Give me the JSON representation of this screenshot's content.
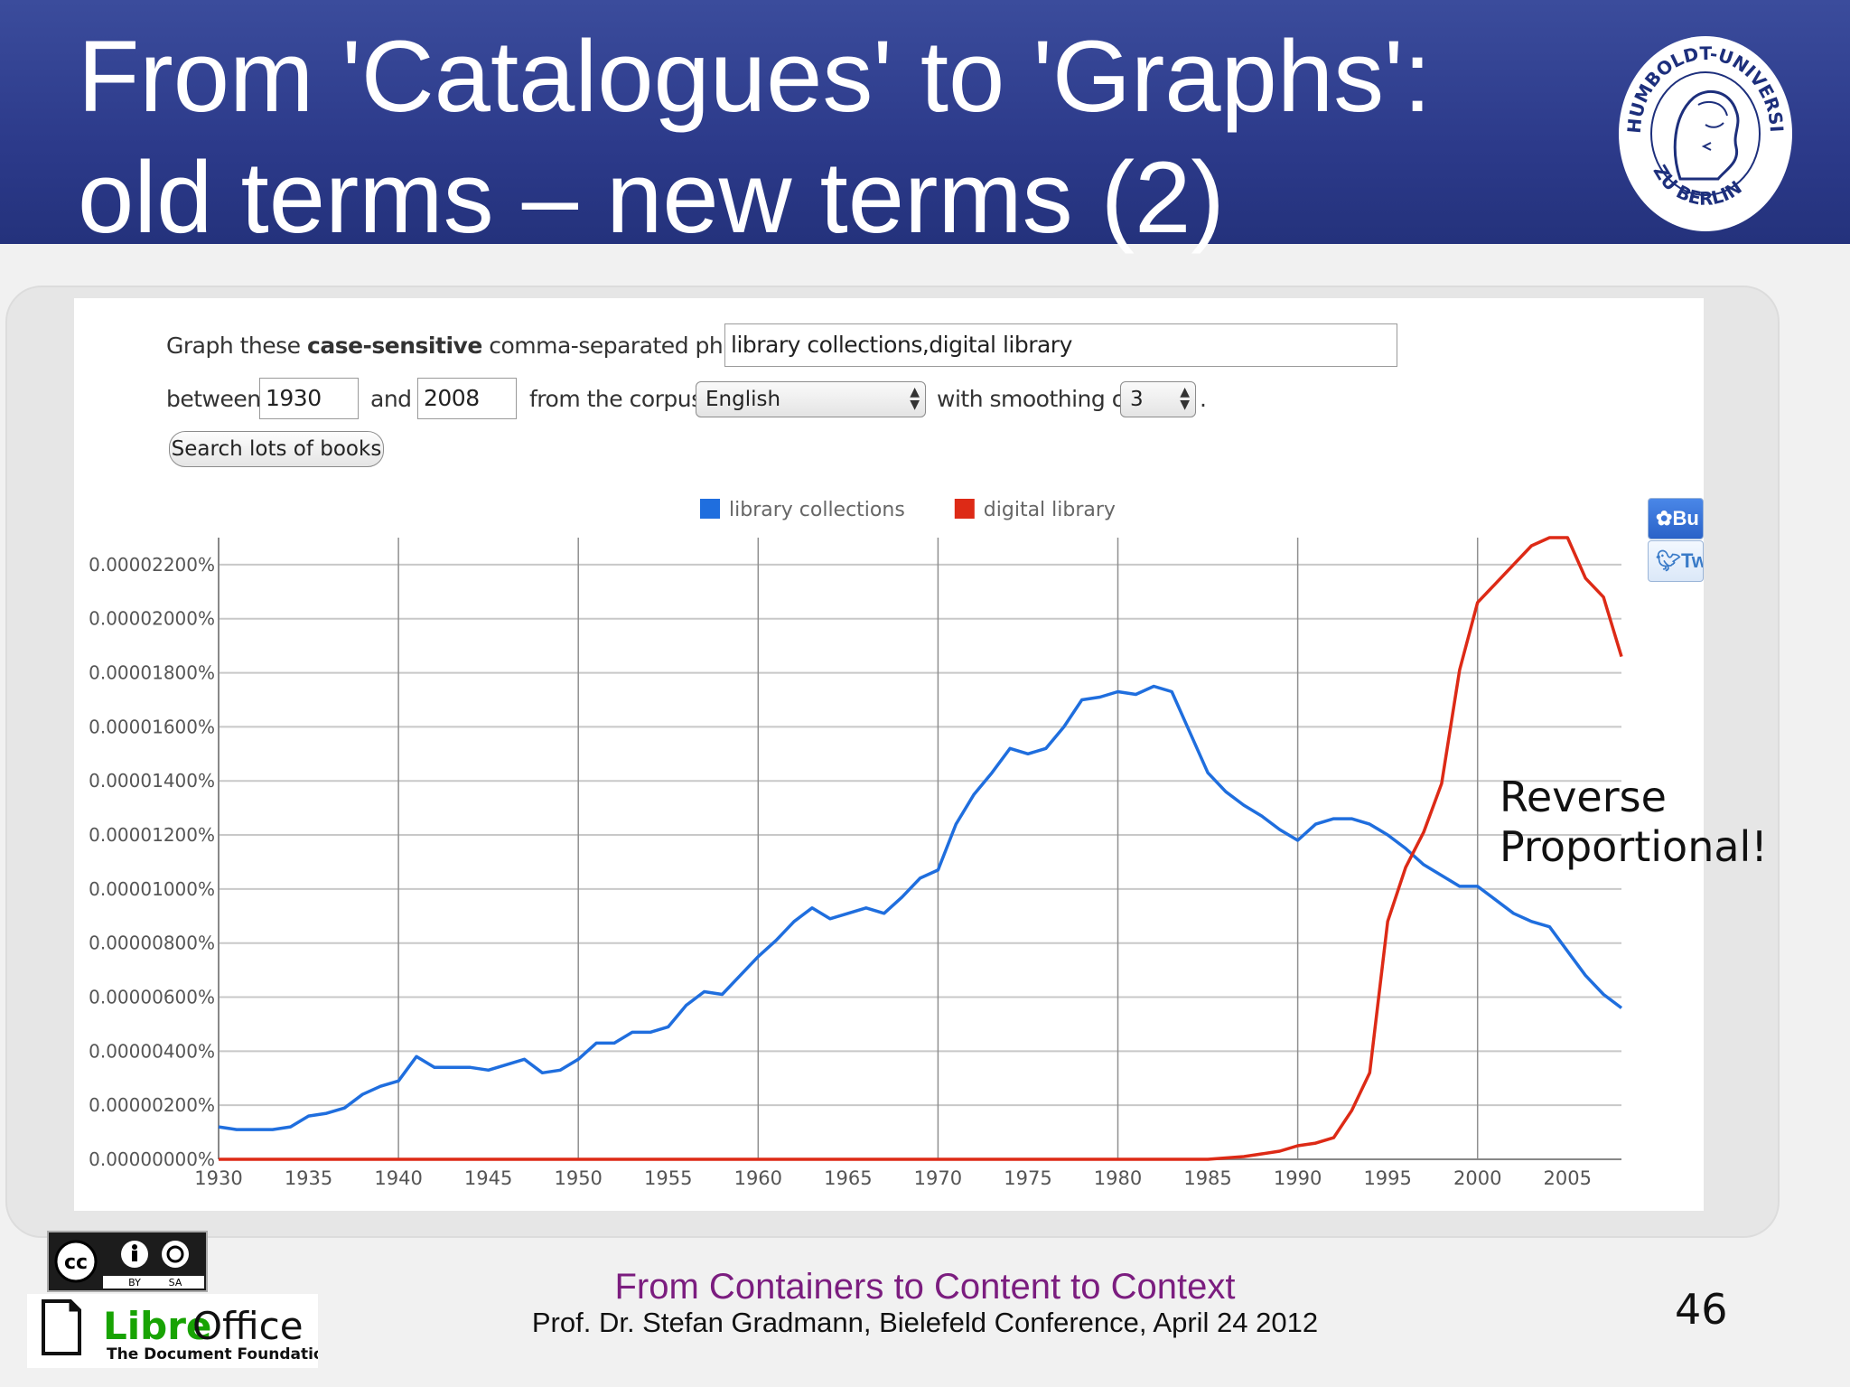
{
  "slide": {
    "title_line1": "From 'Catalogues' to 'Graphs':",
    "title_line2": "old terms – new terms (2)",
    "page_number": "46",
    "footer_title": "From Containers to Content to Context",
    "footer_subtitle": "Prof. Dr. Stefan Gradmann, Bielefeld Conference, April 24 2012",
    "annotation_line1": "Reverse",
    "annotation_line2": "Proportional!",
    "colors": {
      "header": "#2c3a8a",
      "footer_title": "#7b1d7f"
    }
  },
  "seal": {
    "text_top": "HUMBOLDT-UNIVERSITÄT",
    "text_bottom": "ZU BERLIN"
  },
  "ngram_form": {
    "phrase_label_prefix": "Graph these ",
    "phrase_label_bold": "case-sensitive",
    "phrase_label_suffix": " comma-separated phrases:",
    "phrases_value": "library collections,digital library",
    "between_label": "between",
    "start_year": "1930",
    "and_label": "and",
    "end_year": "2008",
    "corpus_label": "from the corpus",
    "corpus_value": "English",
    "smoothing_label": "with smoothing of",
    "smoothing_value": "3",
    "period": ".",
    "search_button": "Search lots of books"
  },
  "share_buttons": {
    "buzz": "Bu",
    "twitter": "Tw"
  },
  "logos": {
    "cc_by": "BY",
    "cc_sa": "SA",
    "libre": "Libre",
    "office": "Office",
    "foundation": "The Document Foundation"
  },
  "chart_data": {
    "type": "line",
    "title": "",
    "xlabel": "",
    "ylabel": "",
    "xlim": [
      1930,
      2008
    ],
    "ylim": [
      0,
      2.3e-05
    ],
    "grid": true,
    "legend_position": "top-center",
    "x_ticks": [
      "1930",
      "1935",
      "1940",
      "1945",
      "1950",
      "1955",
      "1960",
      "1965",
      "1970",
      "1975",
      "1980",
      "1985",
      "1990",
      "1995",
      "2000",
      "2005"
    ],
    "y_ticks": [
      "0.00000000%",
      "0.00000200%",
      "0.00000400%",
      "0.00000600%",
      "0.00000800%",
      "0.00001000%",
      "0.00001200%",
      "0.00001400%",
      "0.00001600%",
      "0.00001800%",
      "0.00002000%",
      "0.00002200%"
    ],
    "x": [
      1930,
      1931,
      1932,
      1933,
      1934,
      1935,
      1936,
      1937,
      1938,
      1939,
      1940,
      1941,
      1942,
      1943,
      1944,
      1945,
      1946,
      1947,
      1948,
      1949,
      1950,
      1951,
      1952,
      1953,
      1954,
      1955,
      1956,
      1957,
      1958,
      1959,
      1960,
      1961,
      1962,
      1963,
      1964,
      1965,
      1966,
      1967,
      1968,
      1969,
      1970,
      1971,
      1972,
      1973,
      1974,
      1975,
      1976,
      1977,
      1978,
      1979,
      1980,
      1981,
      1982,
      1983,
      1984,
      1985,
      1986,
      1987,
      1988,
      1989,
      1990,
      1991,
      1992,
      1993,
      1994,
      1995,
      1996,
      1997,
      1998,
      1999,
      2000,
      2001,
      2002,
      2003,
      2004,
      2005,
      2006,
      2007,
      2008
    ],
    "series": [
      {
        "name": "library collections",
        "color": "#1f6ede",
        "values": [
          1.2e-06,
          1.1e-06,
          1.1e-06,
          1.1e-06,
          1.2e-06,
          1.6e-06,
          1.7e-06,
          1.9e-06,
          2.4e-06,
          2.7e-06,
          2.9e-06,
          3.8e-06,
          3.4e-06,
          3.4e-06,
          3.4e-06,
          3.3e-06,
          3.5e-06,
          3.7e-06,
          3.2e-06,
          3.3e-06,
          3.7e-06,
          4.3e-06,
          4.3e-06,
          4.7e-06,
          4.7e-06,
          4.9e-06,
          5.7e-06,
          6.2e-06,
          6.1e-06,
          6.8e-06,
          7.5e-06,
          8.1e-06,
          8.8e-06,
          9.3e-06,
          8.9e-06,
          9.1e-06,
          9.3e-06,
          9.1e-06,
          9.7e-06,
          1.04e-05,
          1.07e-05,
          1.24e-05,
          1.35e-05,
          1.43e-05,
          1.52e-05,
          1.5e-05,
          1.52e-05,
          1.6e-05,
          1.7e-05,
          1.71e-05,
          1.73e-05,
          1.72e-05,
          1.75e-05,
          1.73e-05,
          1.58e-05,
          1.43e-05,
          1.36e-05,
          1.31e-05,
          1.27e-05,
          1.22e-05,
          1.18e-05,
          1.24e-05,
          1.26e-05,
          1.26e-05,
          1.24e-05,
          1.2e-05,
          1.15e-05,
          1.09e-05,
          1.05e-05,
          1.01e-05,
          1.01e-05,
          9.6e-06,
          9.1e-06,
          8.8e-06,
          8.6e-06,
          7.7e-06,
          6.8e-06,
          6.1e-06,
          5.6e-06
        ]
      },
      {
        "name": "digital library",
        "color": "#dd2a16",
        "values": [
          0,
          0,
          0,
          0,
          0,
          0,
          0,
          0,
          0,
          0,
          0,
          0,
          0,
          0,
          0,
          0,
          0,
          0,
          0,
          0,
          0,
          0,
          0,
          0,
          0,
          0,
          0,
          0,
          0,
          0,
          0,
          0,
          0,
          0,
          0,
          0,
          0,
          0,
          0,
          0,
          0,
          0,
          0,
          0,
          0,
          0,
          0,
          0,
          0,
          0,
          0,
          0,
          0,
          0,
          0,
          0,
          5e-08,
          1e-07,
          2e-07,
          3e-07,
          5e-07,
          6e-07,
          8e-07,
          1.8e-06,
          3.2e-06,
          8.8e-06,
          1.08e-05,
          1.21e-05,
          1.39e-05,
          1.81e-05,
          2.06e-05,
          2.13e-05,
          2.2e-05,
          2.27e-05,
          2.3e-05,
          2.3e-05,
          2.15e-05,
          2.08e-05,
          1.86e-05
        ]
      }
    ]
  }
}
